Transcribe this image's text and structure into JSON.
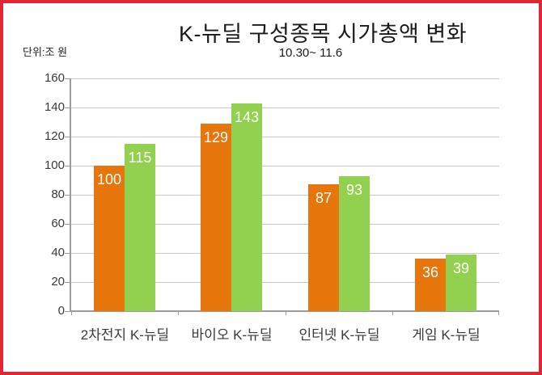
{
  "frame": {
    "border_color": "#E02535"
  },
  "chart_data": {
    "type": "bar",
    "title": "K-뉴딜 구성종목 시가총액 변화",
    "subtitle": "10.30~ 11.6",
    "unit_label": "단위:조 원",
    "categories": [
      "2차전지 K-뉴딜",
      "바이오 K-뉴딜",
      "인터넷 K-뉴딜",
      "게임 K-뉴딜"
    ],
    "series": [
      {
        "color": "#E6750C",
        "values": [
          100,
          129,
          87,
          36
        ]
      },
      {
        "color": "#92D04F",
        "values": [
          115,
          143,
          93,
          39
        ]
      }
    ],
    "ylim": [
      0,
      160
    ],
    "ytick_step": 20,
    "grid": "horizontal",
    "legend": "none",
    "value_label_style": "inside-end-white",
    "gridline_color": "#C9C9C9",
    "axis_color": "#9B9B9B"
  }
}
